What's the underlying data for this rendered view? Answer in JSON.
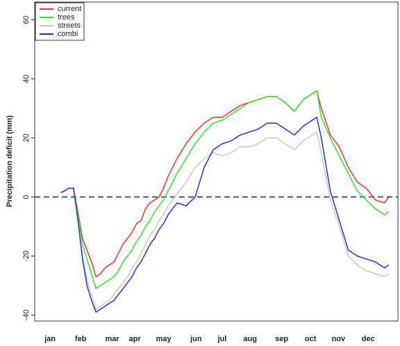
{
  "chart_data": {
    "type": "line",
    "y_label": "Precipitation deficit (mm)",
    "x": [
      1,
      5,
      10,
      15,
      20,
      25,
      30,
      35,
      40,
      45,
      50,
      55,
      60,
      65,
      70,
      75,
      80,
      85,
      90,
      95,
      100,
      105,
      110,
      115,
      120,
      125,
      130,
      140,
      150,
      160,
      170,
      180,
      190,
      200,
      210,
      220,
      230,
      240,
      250,
      260,
      270,
      280,
      285,
      290,
      300,
      310,
      320,
      330,
      340,
      350,
      360,
      365
    ],
    "series": [
      {
        "name": "current",
        "color": "#ff2a2a",
        "values": [
          1.5,
          2,
          3,
          3,
          -5,
          -14,
          -18,
          -22,
          -27,
          -26,
          -24,
          -23,
          -22,
          -19,
          -16,
          -14,
          -12,
          -9,
          -8,
          -4,
          -2,
          -1,
          0,
          3,
          7,
          10,
          13,
          18,
          22,
          25,
          27,
          27,
          29,
          31,
          32,
          33,
          34,
          34,
          32,
          29,
          33,
          35,
          36,
          30,
          21,
          17,
          10,
          5,
          3,
          -1,
          -2,
          0
        ]
      },
      {
        "name": "trees",
        "color": "#22ee22",
        "values": [
          1.5,
          2,
          3,
          3,
          -6,
          -16,
          -21,
          -26,
          -31,
          -30,
          -29,
          -28,
          -27,
          -25,
          -22,
          -20,
          -18,
          -15,
          -13,
          -10,
          -8,
          -5,
          -3,
          -1,
          2,
          5,
          8,
          13,
          18,
          22,
          25,
          26,
          28,
          30,
          32,
          33,
          34,
          34,
          32,
          29,
          33,
          35,
          36,
          27,
          20,
          14,
          8,
          2,
          -1,
          -4,
          -6,
          -5
        ]
      },
      {
        "name": "streets",
        "color": "#c8c8c8",
        "values": [
          1.5,
          2,
          3,
          3,
          -8,
          -20,
          -28,
          -33,
          -38,
          -37,
          -36,
          -35,
          -33,
          -31,
          -29,
          -27,
          -24,
          -22,
          -19,
          -16,
          -13,
          -11,
          -8,
          -6,
          -3,
          -1,
          1,
          5,
          10,
          13,
          15,
          14,
          15,
          17,
          17,
          18,
          20,
          20,
          18,
          16,
          19,
          21,
          22,
          15,
          -1,
          -10,
          -20,
          -23,
          -25,
          -26,
          -27,
          -26
        ]
      },
      {
        "name": "combi",
        "color": "#2a2aee",
        "values": [
          1.5,
          2,
          3,
          3,
          -8,
          -21,
          -30,
          -35,
          -39,
          -38,
          -37,
          -36,
          -35,
          -33,
          -31,
          -29,
          -27,
          -24,
          -22,
          -19,
          -16,
          -14,
          -11,
          -9,
          -6,
          -4,
          -2,
          -3,
          0,
          10,
          16,
          18,
          19,
          21,
          22,
          23,
          25,
          25,
          23,
          21,
          24,
          26,
          27,
          20,
          2,
          -8,
          -18,
          -20,
          -21,
          -22,
          -24,
          -23
        ]
      }
    ],
    "xlim": [
      -28,
      375
    ],
    "xticks": [
      {
        "value": -11,
        "label": "jan"
      },
      {
        "value": 23,
        "label": "feb"
      },
      {
        "value": 58,
        "label": "mar"
      },
      {
        "value": 83,
        "label": "apr"
      },
      {
        "value": 115,
        "label": "may"
      },
      {
        "value": 151,
        "label": "jun"
      },
      {
        "value": 180,
        "label": "jul"
      },
      {
        "value": 211,
        "label": "aug"
      },
      {
        "value": 246,
        "label": "sep"
      },
      {
        "value": 278,
        "label": "oct"
      },
      {
        "value": 309,
        "label": "nov"
      },
      {
        "value": 342,
        "label": "dec"
      }
    ],
    "ylim": [
      -42,
      66
    ],
    "yticks": [
      -40,
      -20,
      0,
      20,
      40,
      60
    ],
    "hline": 0,
    "hline_color": "#2f5f8f",
    "legend": "top-left"
  }
}
